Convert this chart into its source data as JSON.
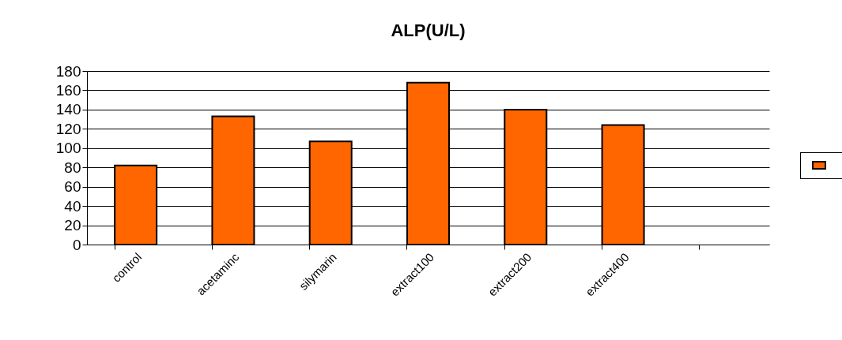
{
  "chart_data": {
    "type": "bar",
    "title": "ALP(U/L)",
    "categories": [
      "control",
      "acetaminc",
      "silymarin",
      "extract100",
      "extract200",
      "extract400",
      null
    ],
    "series": [
      {
        "color": "#ff6600",
        "values": [
          82,
          133,
          107,
          168,
          140,
          124,
          null
        ]
      }
    ],
    "ylim": [
      0,
      180
    ],
    "yticks": [
      0,
      20,
      40,
      60,
      80,
      100,
      120,
      140,
      160,
      180
    ],
    "grid": "y"
  }
}
